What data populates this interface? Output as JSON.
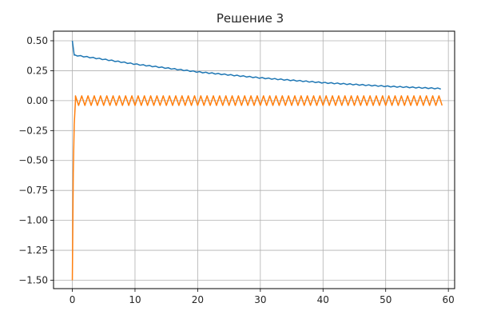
{
  "chart_data": {
    "type": "line",
    "title": "Решение 3",
    "xlabel": "",
    "ylabel": "",
    "xlim": [
      -3,
      61
    ],
    "ylim": [
      -1.57,
      0.58
    ],
    "x_ticks": [
      0,
      10,
      20,
      30,
      40,
      50,
      60
    ],
    "y_ticks": [
      0.5,
      0.25,
      0.0,
      -0.25,
      -0.5,
      -0.75,
      -1.0,
      -1.25,
      -1.5
    ],
    "x_tick_labels": [
      "0",
      "10",
      "20",
      "30",
      "40",
      "50",
      "60"
    ],
    "y_tick_labels": [
      "0.50",
      "0.25",
      "0.00",
      "−0.25",
      "−0.50",
      "−0.75",
      "−1.00",
      "−1.25",
      "−1.50"
    ],
    "grid": true,
    "legend": "none",
    "series": [
      {
        "color": "#1f77b4",
        "description_x": [
          0,
          0.3,
          5,
          10,
          20,
          30,
          40,
          50,
          59
        ],
        "values": [
          0.5,
          0.38,
          0.345,
          0.305,
          0.24,
          0.19,
          0.15,
          0.12,
          0.1
        ],
        "oscillation_amplitude": 0.004,
        "oscillation_period": 1
      },
      {
        "color": "#ff7f0e",
        "description_x": [
          0,
          0.15,
          0.3,
          0.5,
          59
        ],
        "values": [
          -1.5,
          -0.6,
          -0.2,
          0.0,
          0.0
        ],
        "oscillation_amplitude": 0.04,
        "oscillation_period": 1
      }
    ]
  }
}
